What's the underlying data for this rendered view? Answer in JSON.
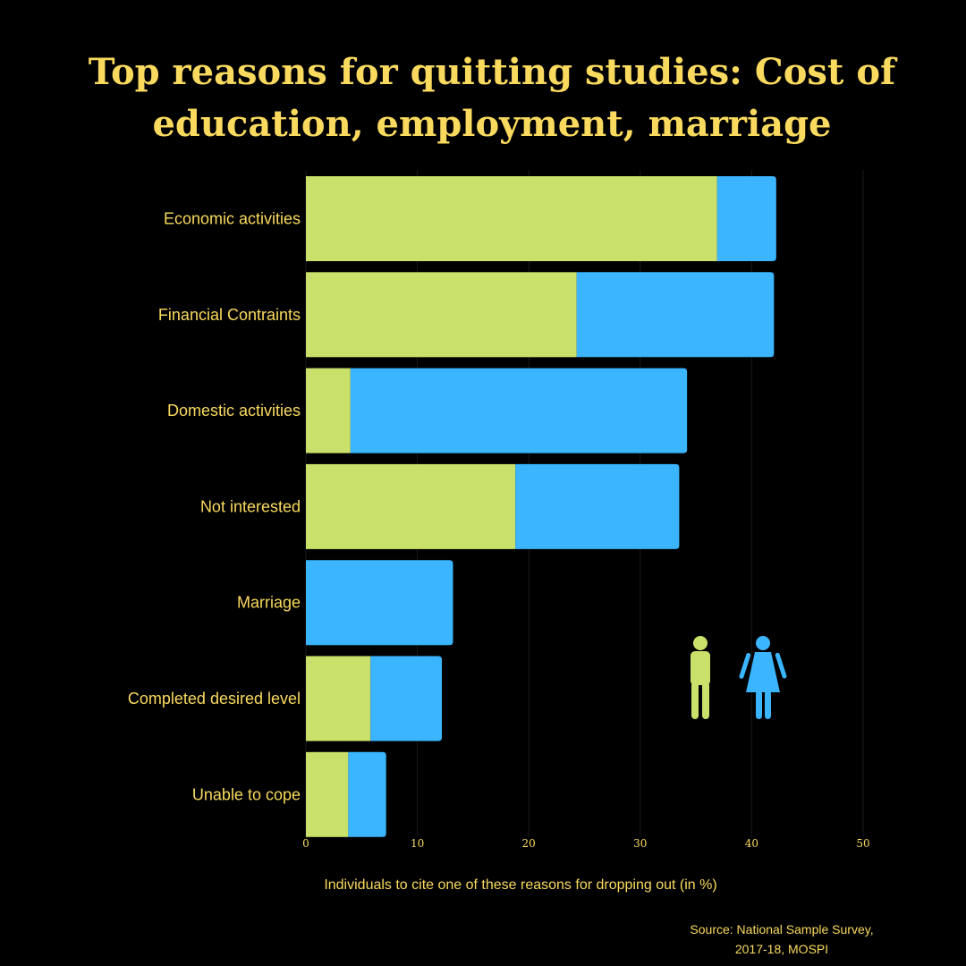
{
  "title_lines": [
    "Top reasons for quitting studies: Cost of",
    "education, employment, marriage"
  ],
  "source_lines": [
    "Source: National Sample Survey,",
    "2017-18, MOSPI"
  ],
  "colors": {
    "background": "#000000",
    "text": "#fada5e",
    "male": "#c9e06a",
    "female": "#3bb5ff",
    "grid": "#1a1a1a"
  },
  "legend": {
    "male_icon": "male-figure-icon",
    "female_icon": "female-figure-icon"
  },
  "chart_data": {
    "type": "bar",
    "orientation": "horizontal",
    "stacked": true,
    "categories": [
      "Economic activities",
      "Financial Contraints",
      "Domestic activities",
      "Not interested",
      "Marriage",
      "Completed desired level",
      "Unable to cope"
    ],
    "series": [
      {
        "color": "#c9e06a",
        "values": [
          36.9,
          24.3,
          4.0,
          18.8,
          0,
          5.8,
          3.8
        ]
      },
      {
        "color": "#3bb5ff",
        "values": [
          5.3,
          17.7,
          30.2,
          14.7,
          13.2,
          6.4,
          3.4
        ]
      }
    ],
    "xlabel": "Individuals to cite one of these reasons for dropping out (in %)",
    "xlim": [
      0,
      50
    ],
    "xticks": [
      0,
      10,
      20,
      30,
      40,
      50
    ],
    "grid": true
  }
}
